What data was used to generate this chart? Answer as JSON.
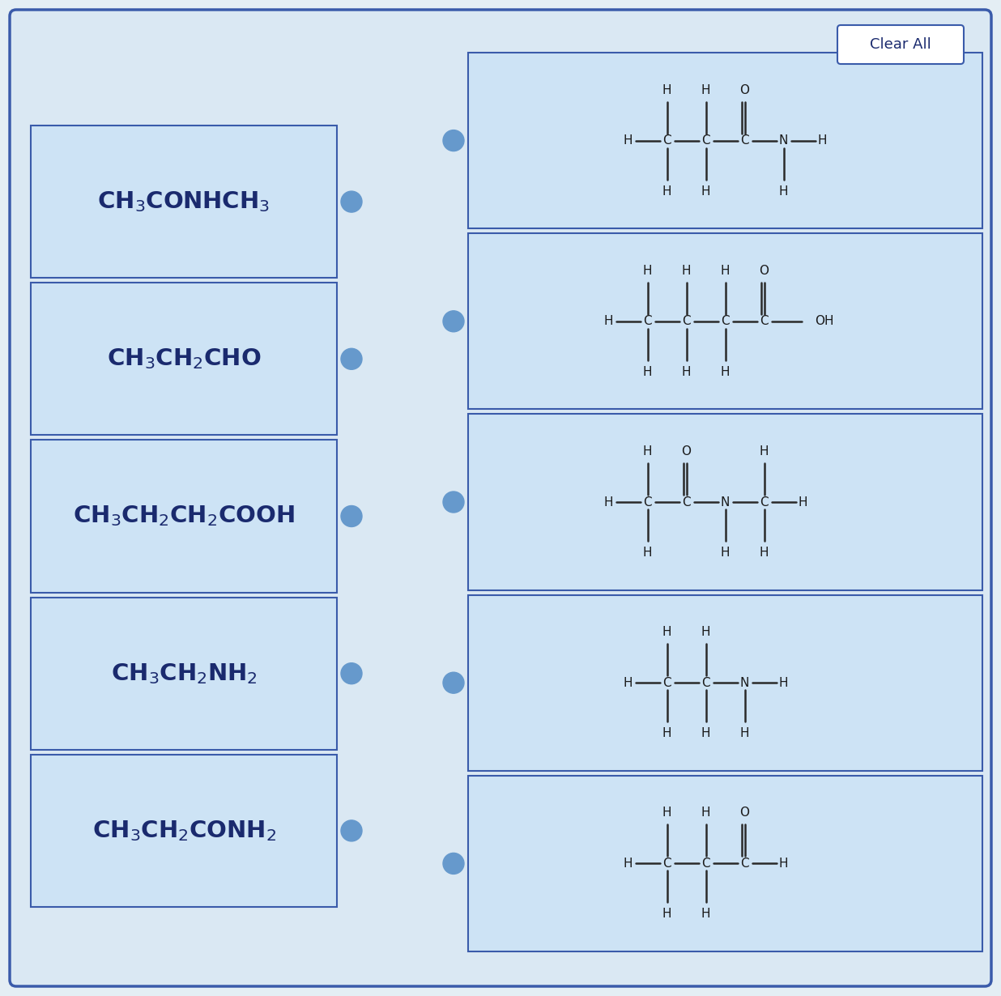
{
  "bg_color": "#dae8f3",
  "box_bg_color": "#cde3f5",
  "outer_bg": "#e4eef4",
  "border_color": "#3a5baa",
  "text_color": "#1a2a6e",
  "left_labels": [
    "CH$_3$CONHCH$_3$",
    "CH$_3$CH$_2$CHO",
    "CH$_3$CH$_2$CH$_2$COOH",
    "CH$_3$CH$_2$NH$_2$",
    "CH$_3$CH$_2$CONH$_2$"
  ],
  "dot_color": "#6699cc",
  "clear_all_text": "Clear All",
  "label_fontsize": 21
}
